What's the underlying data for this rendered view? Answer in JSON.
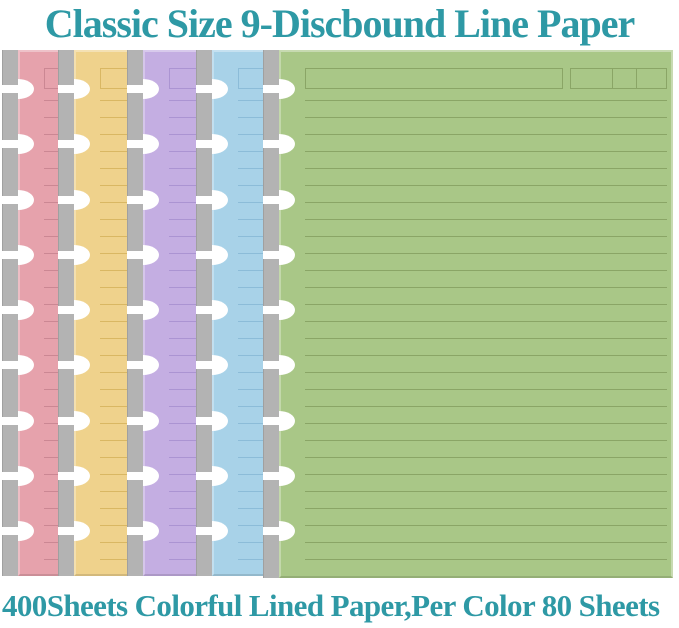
{
  "header": {
    "title": "Classic Size 9-Discbound Line Paper"
  },
  "footer": {
    "caption": "400Sheets Colorful Lined Paper,Per Color 80 Sheets"
  },
  "theme": {
    "accent_text": "#2e99a5",
    "background": "#ffffff",
    "binding_strip": "#b3b3b3",
    "hole_color": "#ffffff"
  },
  "stack": {
    "discs_per_sheet": 9,
    "ruled_lines_per_sheet": 28,
    "sheets": [
      {
        "name": "pink",
        "paper": "#e6a2ac",
        "line": "#cb8793"
      },
      {
        "name": "yellow",
        "paper": "#efd28c",
        "line": "#d9b763"
      },
      {
        "name": "purple",
        "paper": "#c4aee2",
        "line": "#ab94d2"
      },
      {
        "name": "blue",
        "paper": "#a8d2e8",
        "line": "#8cbcd8"
      },
      {
        "name": "green",
        "paper": "#a9c787",
        "line": "#8aa566"
      }
    ]
  }
}
